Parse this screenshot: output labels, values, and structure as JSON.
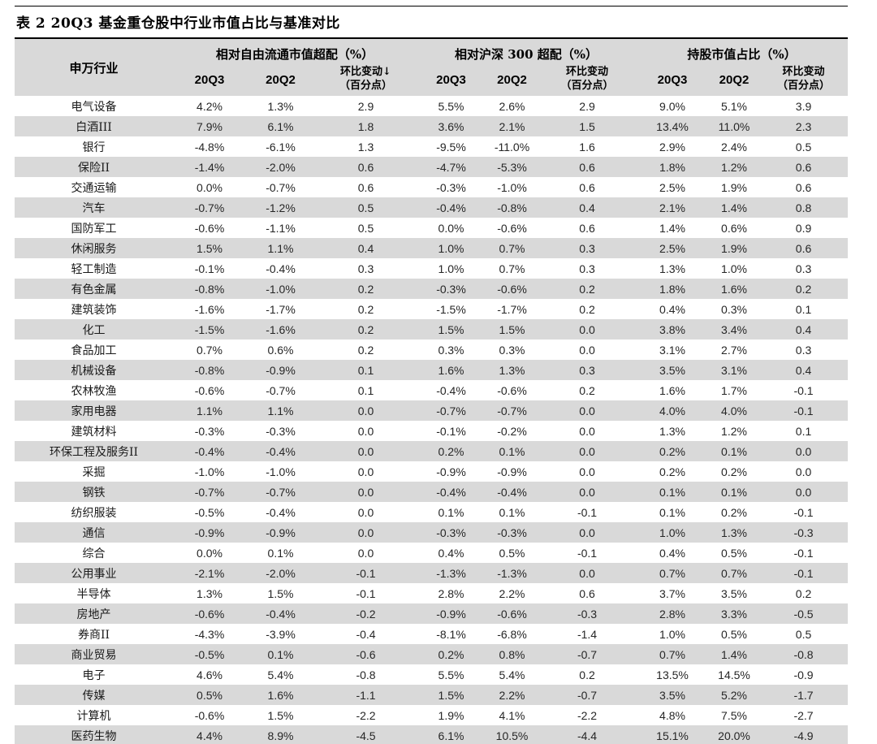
{
  "title": "表 2 20Q3 基金重仓股中行业市值占比与基准对比",
  "colors": {
    "header_bg": "#d9d9d9",
    "row_stripe_bg": "#d9d9d9",
    "rule_color": "#000000",
    "text_color": "#262626"
  },
  "table": {
    "industry_header": "申万行业",
    "groups": [
      {
        "label": "相对自由流通市值超配（%）",
        "q3": "20Q3",
        "q2": "20Q2",
        "chg_line1": "环比变动↓",
        "chg_line2": "（百分点）"
      },
      {
        "label": "相对沪深 300 超配（%）",
        "q3": "20Q3",
        "q2": "20Q2",
        "chg_line1": "环比变动",
        "chg_line2": "（百分点）"
      },
      {
        "label": "持股市值占比（%）",
        "q3": "20Q3",
        "q2": "20Q2",
        "chg_line1": "环比变动",
        "chg_line2": "（百分点）"
      }
    ],
    "rows": [
      [
        "电气设备",
        "4.2%",
        "1.3%",
        "2.9",
        "5.5%",
        "2.6%",
        "2.9",
        "9.0%",
        "5.1%",
        "3.9"
      ],
      [
        "白酒III",
        "7.9%",
        "6.1%",
        "1.8",
        "3.6%",
        "2.1%",
        "1.5",
        "13.4%",
        "11.0%",
        "2.3"
      ],
      [
        "银行",
        "-4.8%",
        "-6.1%",
        "1.3",
        "-9.5%",
        "-11.0%",
        "1.6",
        "2.9%",
        "2.4%",
        "0.5"
      ],
      [
        "保险II",
        "-1.4%",
        "-2.0%",
        "0.6",
        "-4.7%",
        "-5.3%",
        "0.6",
        "1.8%",
        "1.2%",
        "0.6"
      ],
      [
        "交通运输",
        "0.0%",
        "-0.7%",
        "0.6",
        "-0.3%",
        "-1.0%",
        "0.6",
        "2.5%",
        "1.9%",
        "0.6"
      ],
      [
        "汽车",
        "-0.7%",
        "-1.2%",
        "0.5",
        "-0.4%",
        "-0.8%",
        "0.4",
        "2.1%",
        "1.4%",
        "0.8"
      ],
      [
        "国防军工",
        "-0.6%",
        "-1.1%",
        "0.5",
        "0.0%",
        "-0.6%",
        "0.6",
        "1.4%",
        "0.6%",
        "0.9"
      ],
      [
        "休闲服务",
        "1.5%",
        "1.1%",
        "0.4",
        "1.0%",
        "0.7%",
        "0.3",
        "2.5%",
        "1.9%",
        "0.6"
      ],
      [
        "轻工制造",
        "-0.1%",
        "-0.4%",
        "0.3",
        "1.0%",
        "0.7%",
        "0.3",
        "1.3%",
        "1.0%",
        "0.3"
      ],
      [
        "有色金属",
        "-0.8%",
        "-1.0%",
        "0.2",
        "-0.3%",
        "-0.6%",
        "0.2",
        "1.8%",
        "1.6%",
        "0.2"
      ],
      [
        "建筑装饰",
        "-1.6%",
        "-1.7%",
        "0.2",
        "-1.5%",
        "-1.7%",
        "0.2",
        "0.4%",
        "0.3%",
        "0.1"
      ],
      [
        "化工",
        "-1.5%",
        "-1.6%",
        "0.2",
        "1.5%",
        "1.5%",
        "0.0",
        "3.8%",
        "3.4%",
        "0.4"
      ],
      [
        "食品加工",
        "0.7%",
        "0.6%",
        "0.2",
        "0.3%",
        "0.3%",
        "0.0",
        "3.1%",
        "2.7%",
        "0.3"
      ],
      [
        "机械设备",
        "-0.8%",
        "-0.9%",
        "0.1",
        "1.6%",
        "1.3%",
        "0.3",
        "3.5%",
        "3.1%",
        "0.4"
      ],
      [
        "农林牧渔",
        "-0.6%",
        "-0.7%",
        "0.1",
        "-0.4%",
        "-0.6%",
        "0.2",
        "1.6%",
        "1.7%",
        "-0.1"
      ],
      [
        "家用电器",
        "1.1%",
        "1.1%",
        "0.0",
        "-0.7%",
        "-0.7%",
        "0.0",
        "4.0%",
        "4.0%",
        "-0.1"
      ],
      [
        "建筑材料",
        "-0.3%",
        "-0.3%",
        "0.0",
        "-0.1%",
        "-0.2%",
        "0.0",
        "1.3%",
        "1.2%",
        "0.1"
      ],
      [
        "环保工程及服务II",
        "-0.4%",
        "-0.4%",
        "0.0",
        "0.2%",
        "0.1%",
        "0.0",
        "0.2%",
        "0.1%",
        "0.0"
      ],
      [
        "采掘",
        "-1.0%",
        "-1.0%",
        "0.0",
        "-0.9%",
        "-0.9%",
        "0.0",
        "0.2%",
        "0.2%",
        "0.0"
      ],
      [
        "钢铁",
        "-0.7%",
        "-0.7%",
        "0.0",
        "-0.4%",
        "-0.4%",
        "0.0",
        "0.1%",
        "0.1%",
        "0.0"
      ],
      [
        "纺织服装",
        "-0.5%",
        "-0.4%",
        "0.0",
        "0.1%",
        "0.1%",
        "-0.1",
        "0.1%",
        "0.2%",
        "-0.1"
      ],
      [
        "通信",
        "-0.9%",
        "-0.9%",
        "0.0",
        "-0.3%",
        "-0.3%",
        "0.0",
        "1.0%",
        "1.3%",
        "-0.3"
      ],
      [
        "综合",
        "0.0%",
        "0.1%",
        "0.0",
        "0.4%",
        "0.5%",
        "-0.1",
        "0.4%",
        "0.5%",
        "-0.1"
      ],
      [
        "公用事业",
        "-2.1%",
        "-2.0%",
        "-0.1",
        "-1.3%",
        "-1.3%",
        "0.0",
        "0.7%",
        "0.7%",
        "-0.1"
      ],
      [
        "半导体",
        "1.3%",
        "1.5%",
        "-0.1",
        "2.8%",
        "2.2%",
        "0.6",
        "3.7%",
        "3.5%",
        "0.2"
      ],
      [
        "房地产",
        "-0.6%",
        "-0.4%",
        "-0.2",
        "-0.9%",
        "-0.6%",
        "-0.3",
        "2.8%",
        "3.3%",
        "-0.5"
      ],
      [
        "券商II",
        "-4.3%",
        "-3.9%",
        "-0.4",
        "-8.1%",
        "-6.8%",
        "-1.4",
        "1.0%",
        "0.5%",
        "0.5"
      ],
      [
        "商业贸易",
        "-0.5%",
        "0.1%",
        "-0.6",
        "0.2%",
        "0.8%",
        "-0.7",
        "0.7%",
        "1.4%",
        "-0.8"
      ],
      [
        "电子",
        "4.6%",
        "5.4%",
        "-0.8",
        "5.5%",
        "5.4%",
        "0.2",
        "13.5%",
        "14.5%",
        "-0.9"
      ],
      [
        "传媒",
        "0.5%",
        "1.6%",
        "-1.1",
        "1.5%",
        "2.2%",
        "-0.7",
        "3.5%",
        "5.2%",
        "-1.7"
      ],
      [
        "计算机",
        "-0.6%",
        "1.5%",
        "-2.2",
        "1.9%",
        "4.1%",
        "-2.2",
        "4.8%",
        "7.5%",
        "-2.7"
      ],
      [
        "医药生物",
        "4.4%",
        "8.9%",
        "-4.5",
        "6.1%",
        "10.5%",
        "-4.4",
        "15.1%",
        "20.0%",
        "-4.9"
      ]
    ]
  }
}
